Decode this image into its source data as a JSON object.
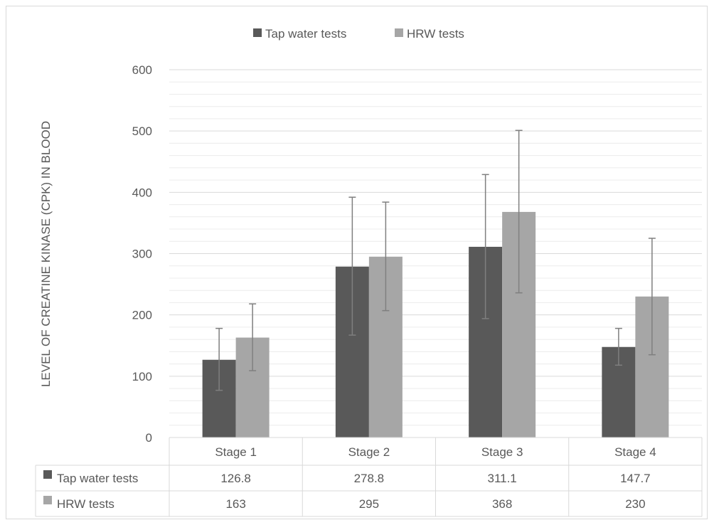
{
  "chart_data": {
    "type": "bar",
    "categories": [
      "Stage 1",
      "Stage 2",
      "Stage 3",
      "Stage 4"
    ],
    "series": [
      {
        "name": "Tap water tests",
        "color": "#595959",
        "values": [
          126.8,
          278.8,
          311.1,
          147.7
        ],
        "error_low": [
          77,
          167,
          194,
          118
        ],
        "error_high": [
          178,
          392,
          429,
          178
        ]
      },
      {
        "name": "HRW tests",
        "color": "#a6a6a6",
        "values": [
          163,
          295,
          368,
          230
        ],
        "error_low": [
          109,
          207,
          236,
          135
        ],
        "error_high": [
          218,
          384,
          501,
          325
        ]
      }
    ],
    "ylabel": "LEVEL OF CREATINE KINASE (CPK) IN BLOOD",
    "xlabel": "",
    "ylim": [
      0,
      600
    ],
    "yticks": [
      0,
      100,
      200,
      300,
      400,
      500,
      600
    ],
    "grid": true,
    "legend": "top",
    "data_table": true
  }
}
